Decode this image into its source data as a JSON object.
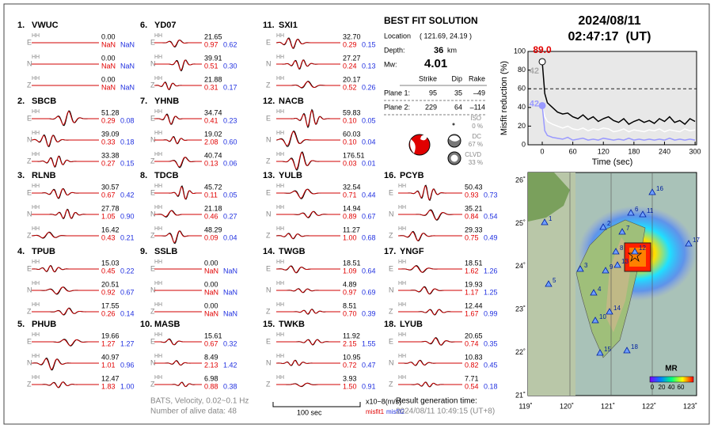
{
  "stations": [
    {
      "index": "1.",
      "name": "VWUC",
      "components": [
        [
          "E",
          "HH",
          "0.00",
          "NaN",
          "NaN"
        ],
        [
          "N",
          "HH",
          "0.00",
          "NaN",
          "NaN"
        ],
        [
          "Z",
          "HH",
          "0.00",
          "NaN",
          "NaN"
        ]
      ]
    },
    {
      "index": "2.",
      "name": "SBCB",
      "components": [
        [
          "E",
          "HH",
          "51.28",
          "0.29",
          "0.08"
        ],
        [
          "N",
          "HH",
          "39.09",
          "0.33",
          "0.18"
        ],
        [
          "Z",
          "HH",
          "33.38",
          "0.27",
          "0.15"
        ]
      ]
    },
    {
      "index": "3.",
      "name": "RLNB",
      "components": [
        [
          "E",
          "HH",
          "30.57",
          "0.67",
          "0.42"
        ],
        [
          "N",
          "HH",
          "27.78",
          "1.05",
          "0.90"
        ],
        [
          "Z",
          "HH",
          "16.42",
          "0.43",
          "0.21"
        ]
      ]
    },
    {
      "index": "4.",
      "name": "TPUB",
      "components": [
        [
          "E",
          "HH",
          "15.03",
          "0.45",
          "0.22"
        ],
        [
          "N",
          "HH",
          "20.51",
          "0.92",
          "0.67"
        ],
        [
          "Z",
          "HH",
          "17.55",
          "0.26",
          "0.14"
        ]
      ]
    },
    {
      "index": "5.",
      "name": "PHUB",
      "components": [
        [
          "E",
          "HH",
          "19.66",
          "1.27",
          "1.27"
        ],
        [
          "N",
          "HH",
          "40.97",
          "1.01",
          "0.96"
        ],
        [
          "Z",
          "HH",
          "12.47",
          "1.83",
          "1.00"
        ]
      ]
    },
    {
      "index": "6.",
      "name": "YD07",
      "components": [
        [
          "E",
          "HH",
          "21.65",
          "0.97",
          "0.62"
        ],
        [
          "N",
          "HH",
          "39.91",
          "0.51",
          "0.30"
        ],
        [
          "Z",
          "HH",
          "21.88",
          "0.31",
          "0.17"
        ]
      ]
    },
    {
      "index": "7.",
      "name": "YHNB",
      "components": [
        [
          "E",
          "HH",
          "34.74",
          "0.41",
          "0.23"
        ],
        [
          "N",
          "HH",
          "19.02",
          "2.08",
          "0.60"
        ],
        [
          "Z",
          "HH",
          "40.74",
          "0.13",
          "0.06"
        ]
      ]
    },
    {
      "index": "8.",
      "name": "TDCB",
      "components": [
        [
          "E",
          "HH",
          "45.72",
          "0.11",
          "0.05"
        ],
        [
          "N",
          "HH",
          "21.18",
          "0.46",
          "0.27"
        ],
        [
          "Z",
          "HH",
          "48.29",
          "0.09",
          "0.04"
        ]
      ]
    },
    {
      "index": "9.",
      "name": "SSLB",
      "components": [
        [
          "E",
          "HH",
          "0.00",
          "NaN",
          "NaN"
        ],
        [
          "N",
          "HH",
          "0.00",
          "NaN",
          "NaN"
        ],
        [
          "Z",
          "HH",
          "0.00",
          "NaN",
          "NaN"
        ]
      ]
    },
    {
      "index": "10.",
      "name": "MASB",
      "components": [
        [
          "E",
          "HH",
          "15.61",
          "0.67",
          "0.32"
        ],
        [
          "N",
          "HH",
          "8.49",
          "2.13",
          "1.42"
        ],
        [
          "Z",
          "HH",
          "6.98",
          "0.88",
          "0.38"
        ]
      ]
    },
    {
      "index": "11.",
      "name": "SXI1",
      "components": [
        [
          "E",
          "HH",
          "32.70",
          "0.29",
          "0.15"
        ],
        [
          "N",
          "HH",
          "27.27",
          "0.24",
          "0.13"
        ],
        [
          "Z",
          "HH",
          "20.17",
          "0.52",
          "0.26"
        ]
      ]
    },
    {
      "index": "12.",
      "name": "NACB",
      "components": [
        [
          "E",
          "HH",
          "59.83",
          "0.10",
          "0.05"
        ],
        [
          "N",
          "HH",
          "60.03",
          "0.10",
          "0.04"
        ],
        [
          "Z",
          "HH",
          "176.51",
          "0.03",
          "0.01"
        ]
      ]
    },
    {
      "index": "13.",
      "name": "YULB",
      "components": [
        [
          "E",
          "HH",
          "32.54",
          "0.71",
          "0.44"
        ],
        [
          "N",
          "HH",
          "14.94",
          "0.89",
          "0.67"
        ],
        [
          "Z",
          "HH",
          "11.27",
          "1.00",
          "0.68"
        ]
      ]
    },
    {
      "index": "14.",
      "name": "TWGB",
      "components": [
        [
          "E",
          "HH",
          "18.51",
          "1.09",
          "0.64"
        ],
        [
          "N",
          "HH",
          "4.89",
          "0.97",
          "0.69"
        ],
        [
          "Z",
          "HH",
          "8.51",
          "0.70",
          "0.39"
        ]
      ]
    },
    {
      "index": "15.",
      "name": "TWKB",
      "components": [
        [
          "E",
          "HH",
          "11.92",
          "2.15",
          "1.55"
        ],
        [
          "N",
          "HH",
          "10.95",
          "0.72",
          "0.47"
        ],
        [
          "Z",
          "HH",
          "3.93",
          "1.50",
          "0.91"
        ]
      ]
    },
    {
      "index": "16.",
      "name": "PCYB",
      "components": [
        [
          "E",
          "HH",
          "50.43",
          "0.93",
          "0.73"
        ],
        [
          "N",
          "HH",
          "35.21",
          "0.84",
          "0.54"
        ],
        [
          "Z",
          "HH",
          "29.33",
          "0.75",
          "0.49"
        ]
      ]
    },
    {
      "index": "17.",
      "name": "YNGF",
      "components": [
        [
          "E",
          "HH",
          "18.51",
          "1.62",
          "1.26"
        ],
        [
          "N",
          "HH",
          "19.93",
          "1.17",
          "1.25"
        ],
        [
          "Z",
          "HH",
          "12.44",
          "1.67",
          "0.99"
        ]
      ]
    },
    {
      "index": "18.",
      "name": "LYUB",
      "components": [
        [
          "E",
          "HH",
          "20.65",
          "0.74",
          "0.35"
        ],
        [
          "N",
          "HH",
          "10.83",
          "0.82",
          "0.45"
        ],
        [
          "Z",
          "HH",
          "7.71",
          "0.54",
          "0.18"
        ]
      ]
    }
  ],
  "solution": {
    "title": "BEST FIT SOLUTION",
    "location_label": "Location",
    "location": "( 121.69, 24.19 )",
    "depth_label": "Depth:",
    "depth": "36",
    "depth_unit": "km",
    "mw_label": "Mw:",
    "mw": "4.01",
    "table": {
      "header": [
        "Strike",
        "Dip",
        "Rake"
      ],
      "rows": [
        [
          "Plane 1:",
          "95",
          "35",
          "–49"
        ],
        [
          "Plane 2:",
          "229",
          "64",
          "–114"
        ]
      ]
    },
    "components": [
      {
        "label": "ISO",
        "percent": "0 %"
      },
      {
        "label": "DC",
        "percent": "67 %"
      },
      {
        "label": "CLVD",
        "percent": "33 %"
      }
    ]
  },
  "event_time": {
    "date": "2024/08/11",
    "time": "02:47:17  (UT)"
  },
  "chart_data": {
    "type": "line",
    "y_label": "Misfit reduction (%)",
    "x_label": "Time (sec)",
    "x": [
      0,
      5,
      10,
      20,
      30,
      40,
      50,
      60,
      70,
      80,
      90,
      100,
      110,
      120,
      130,
      140,
      150,
      160,
      170,
      180,
      190,
      200,
      210,
      220,
      230,
      240,
      250,
      260,
      270,
      280,
      290,
      300
    ],
    "series": [
      {
        "color": "#ffffff",
        "values": [
          42,
          30,
          25,
          22,
          20,
          18,
          20,
          17,
          16,
          18,
          15,
          17,
          16,
          18,
          17,
          14,
          15,
          17,
          14,
          16,
          15,
          14,
          16,
          15,
          17,
          14,
          16,
          15,
          14,
          17,
          15,
          16
        ]
      },
      {
        "color": "#9999ff",
        "values": [
          42,
          15,
          10,
          8,
          7,
          6,
          8,
          5,
          6,
          7,
          5,
          6,
          5,
          7,
          6,
          5,
          6,
          5,
          7,
          5,
          6,
          5,
          6,
          5,
          6,
          5,
          7,
          5,
          6,
          5,
          6,
          5
        ]
      },
      {
        "color": "#000000",
        "values": [
          89,
          55,
          45,
          40,
          35,
          33,
          34,
          30,
          28,
          32,
          27,
          30,
          25,
          28,
          30,
          26,
          24,
          28,
          22,
          25,
          27,
          24,
          26,
          23,
          28,
          25,
          30,
          24,
          26,
          22,
          28,
          25
        ]
      }
    ],
    "xlim": [
      -28,
      303
    ],
    "ylim": [
      0,
      100
    ],
    "xticks": [
      0,
      60,
      120,
      180,
      240,
      300
    ],
    "yticks": [
      0,
      20,
      40,
      60,
      80,
      100
    ],
    "reference_line": 60,
    "annotations": [
      "89.0",
      "42",
      "42"
    ]
  },
  "map": {
    "lon_labels": [
      "119˚",
      "120˚",
      "121˚",
      "122˚",
      "123˚"
    ],
    "lat_labels": [
      "26˚",
      "25˚",
      "24˚",
      "23˚",
      "22˚",
      "21˚"
    ],
    "station_labels": [
      "1",
      "2",
      "3",
      "4",
      "5",
      "6",
      "7",
      "8",
      "9",
      "10",
      "11",
      "12",
      "13",
      "14",
      "15",
      "16",
      "17",
      "18"
    ],
    "colorbar_title": "MR",
    "colorbar_ticks": [
      "0",
      "20",
      "40",
      "60"
    ]
  },
  "footer": {
    "data_info": "BATS, Velocity, 0.02~0.1 Hz",
    "alive": "Number of alive data: 48",
    "scale_label": "100 sec",
    "units": "x10−8(m/s)",
    "misfit1": "misfit1",
    "misfit2": "misfit2",
    "result_label": "Result generation time:",
    "result_time": "2024/08/11 10:49:15 (UT+8)"
  }
}
